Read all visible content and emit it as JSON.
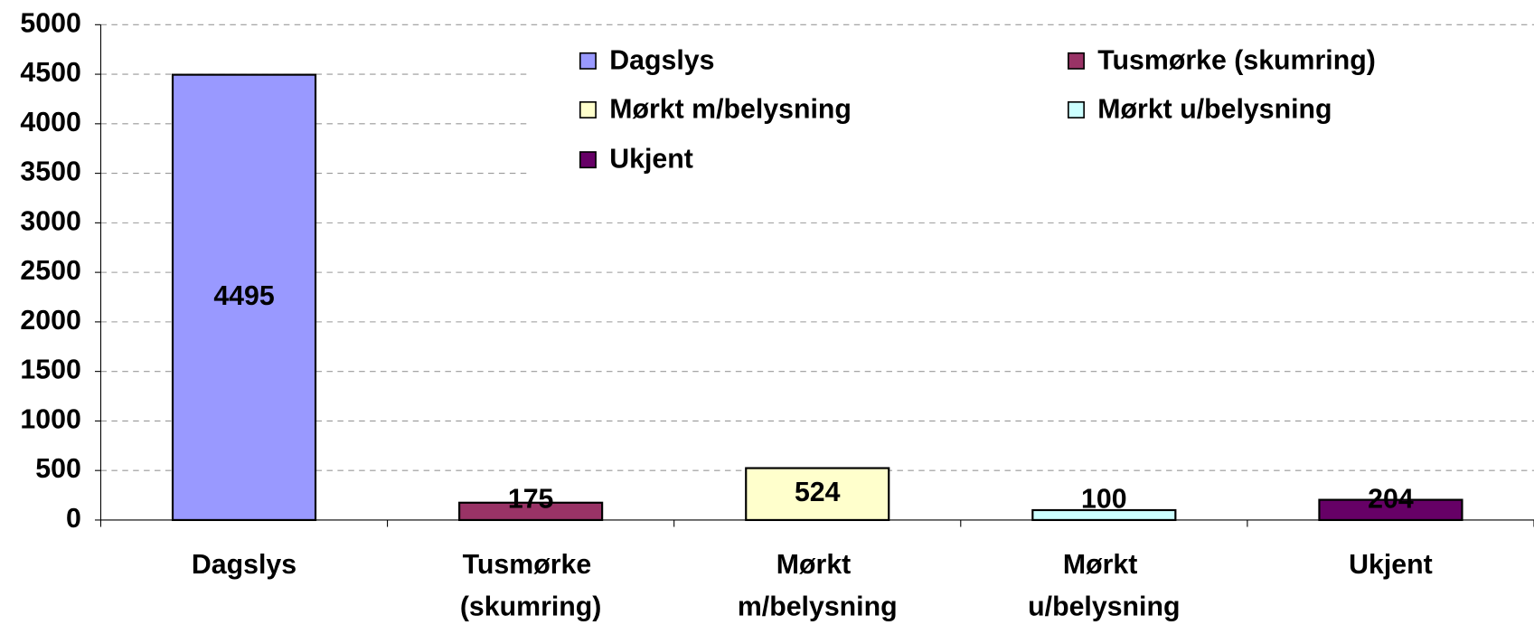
{
  "chart_data": {
    "type": "bar",
    "categories": [
      "Dagslys",
      "Tusmørke (skumring)",
      "Mørkt m/belysning",
      "Mørkt u/belysning",
      "Ukjent"
    ],
    "values": [
      4495,
      175,
      524,
      100,
      204
    ],
    "colors": [
      "#9999ff",
      "#993366",
      "#ffffcc",
      "#ccffff",
      "#660066"
    ],
    "ylim": [
      0,
      5000
    ],
    "yticks": [
      0,
      500,
      1000,
      1500,
      2000,
      2500,
      3000,
      3500,
      4000,
      4500,
      5000
    ],
    "grid": true,
    "legend": "top-right"
  }
}
